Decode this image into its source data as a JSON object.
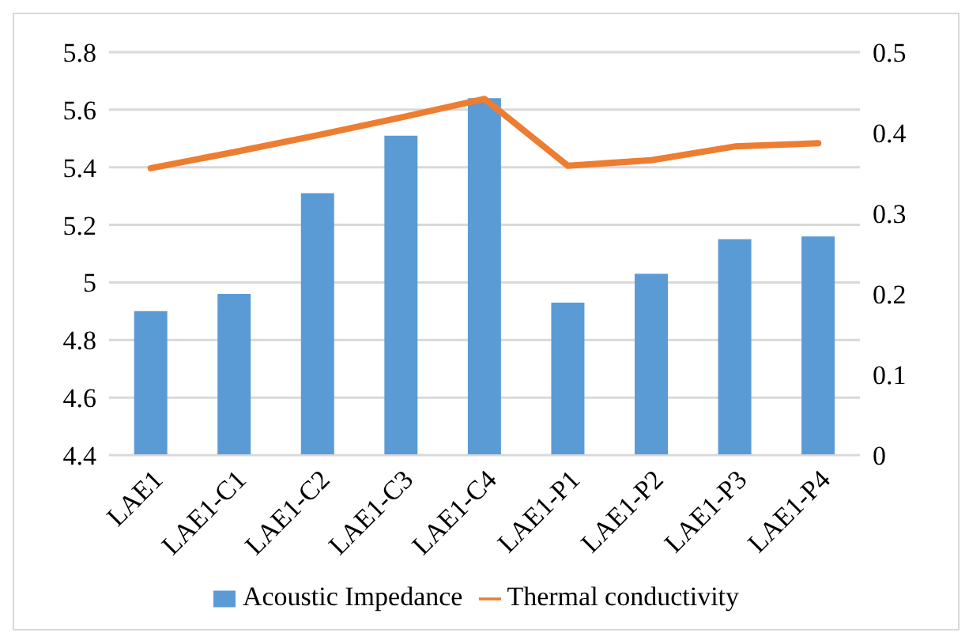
{
  "chart_data": {
    "type": "bar",
    "categories": [
      "LAE1",
      "LAE1-C1",
      "LAE1-C2",
      "LAE1-C3",
      "LAE1-C4",
      "LAE1-P1",
      "LAE1-P2",
      "LAE1-P3",
      "LAE1-P4"
    ],
    "series": [
      {
        "name": "Acoustic Impedance",
        "color": "#5b9bd5",
        "values": [
          4.9,
          4.96,
          5.31,
          5.51,
          5.64,
          4.93,
          5.03,
          5.15,
          5.16
        ]
      },
      {
        "name": "Thermal conductivity",
        "type": "line",
        "axis": "y2",
        "color": "#ed7d31",
        "values": [
          0.356,
          0.376,
          0.397,
          0.419,
          0.442,
          0.359,
          0.366,
          0.383,
          0.387
        ]
      }
    ],
    "ylim": [
      4.4,
      5.8
    ],
    "yticks": [
      4.4,
      4.6,
      4.8,
      5,
      5.2,
      5.4,
      5.6,
      5.8
    ],
    "y2lim": [
      0,
      0.5
    ],
    "y2ticks": [
      0,
      0.1,
      0.2,
      0.3,
      0.4,
      0.5
    ],
    "grid": "y",
    "legend": "bottom",
    "marker": "none",
    "line_style": "solid"
  }
}
